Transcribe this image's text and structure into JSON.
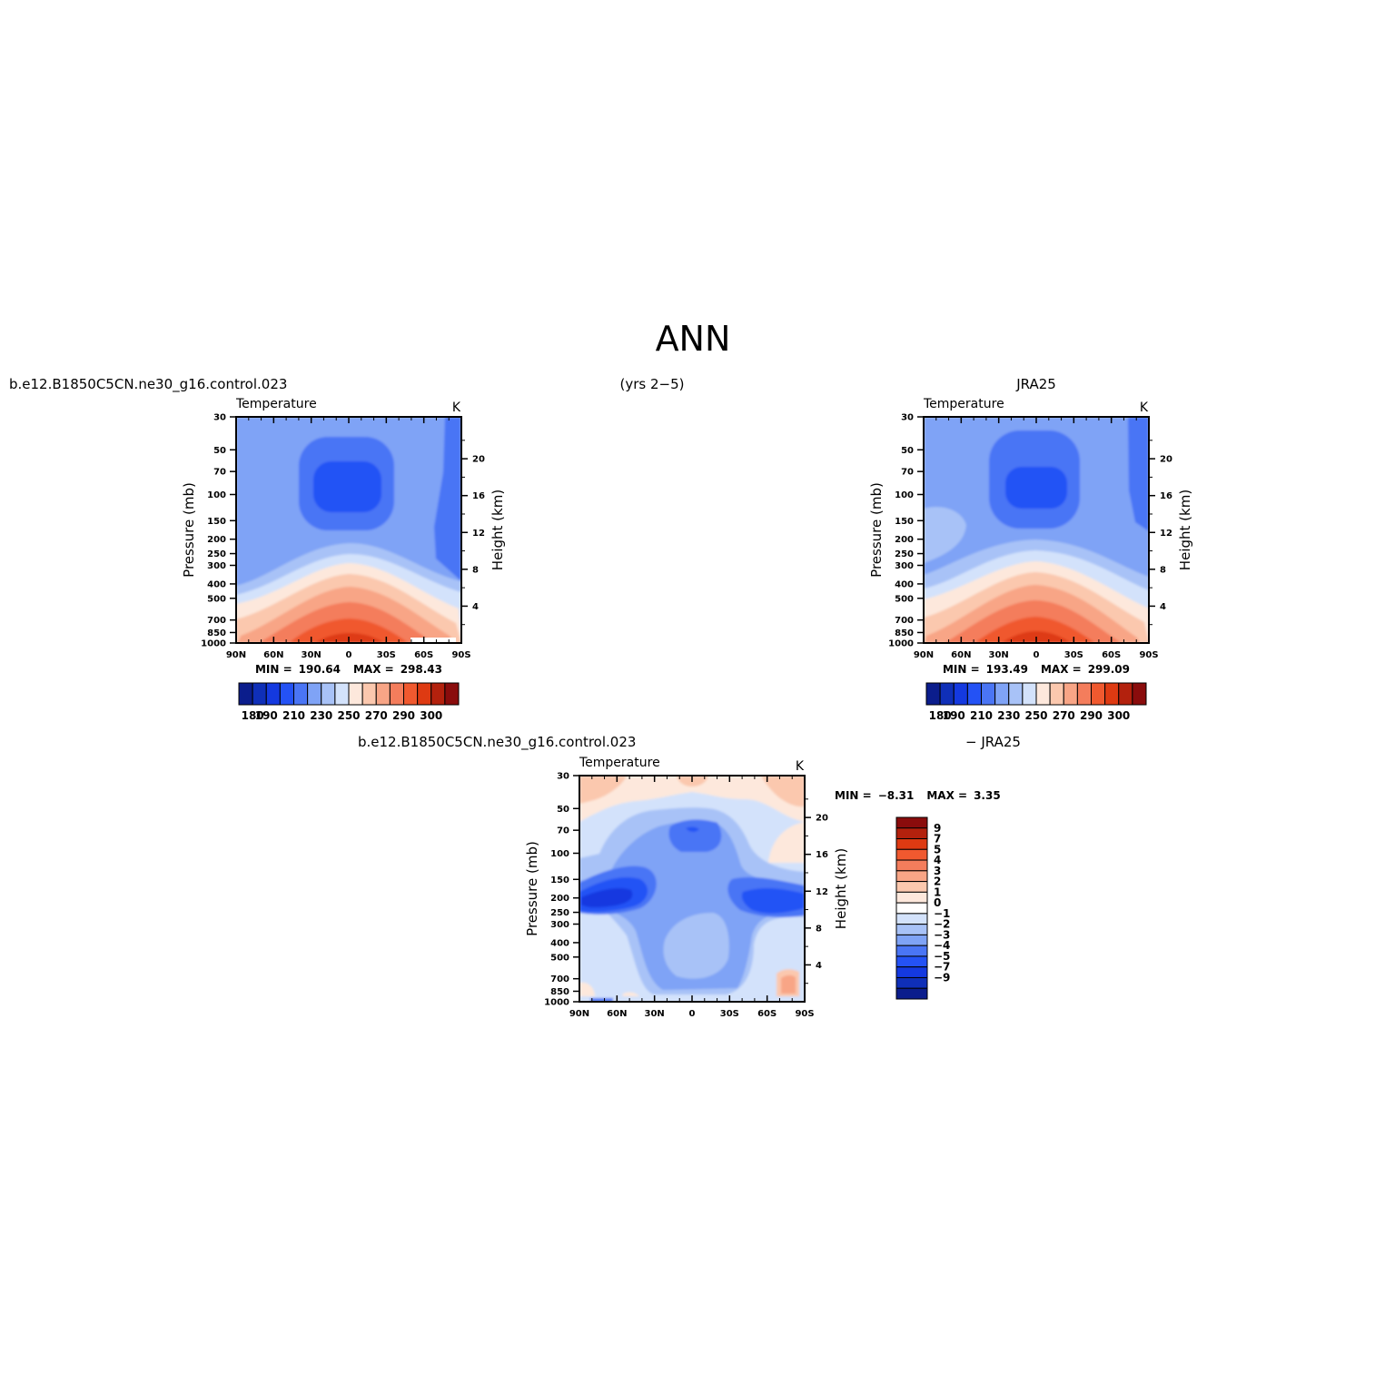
{
  "page_title": "ANN",
  "top_left_header": "b.e12.B1850C5CN.ne30_g16.control.023",
  "top_center_header": "(yrs 2−5)",
  "top_right_header": "JRA25",
  "bottom_header_left": "b.e12.B1850C5CN.ne30_g16.control.023",
  "bottom_header_right": "− JRA25",
  "colors": {
    "abs_palette": [
      "#0b1d8c",
      "#0f2fb8",
      "#1439e0",
      "#2452f5",
      "#4a75f5",
      "#7fa3f6",
      "#a8c2f7",
      "#d3e2fb",
      "#fde8dc",
      "#fbc8ae",
      "#f8a586",
      "#f47d5c",
      "#f0592f",
      "#de3a12",
      "#b3210d",
      "#8a0c0c"
    ],
    "diff_palette": [
      "#0b1d8c",
      "#0f2fb8",
      "#1439e0",
      "#2452f5",
      "#4a75f5",
      "#7fa3f6",
      "#a8c2f7",
      "#d3e2fb",
      "#ffffff",
      "#fde8dc",
      "#fbc8ae",
      "#f8a586",
      "#f47d5c",
      "#f0592f",
      "#de3a12",
      "#b3210d",
      "#8a0c0c"
    ]
  },
  "chart_data": [
    {
      "type": "heatmap",
      "panel": "model",
      "title": "Temperature",
      "units": "K",
      "ylabel": "Pressure (mb)",
      "ylabel_right": "Height (km)",
      "x_ticks": [
        "90N",
        "60N",
        "30N",
        "0",
        "30S",
        "60S",
        "90S"
      ],
      "y_ticks": [
        "30",
        "50",
        "70",
        "100",
        "150",
        "200",
        "250",
        "300",
        "400",
        "500",
        "700",
        "850",
        "1000"
      ],
      "y_right_ticks": [
        "20",
        "16",
        "12",
        "8",
        "4"
      ],
      "stats": {
        "min_label": "MIN =",
        "min": "190.64",
        "max_label": "MAX =",
        "max": "298.43"
      },
      "colorbar_labels": [
        "180",
        "190",
        "210",
        "230",
        "250",
        "270",
        "290",
        "300"
      ]
    },
    {
      "type": "heatmap",
      "panel": "obs",
      "title": "Temperature",
      "units": "K",
      "ylabel": "Pressure (mb)",
      "ylabel_right": "Height (km)",
      "x_ticks": [
        "90N",
        "60N",
        "30N",
        "0",
        "30S",
        "60S",
        "90S"
      ],
      "y_ticks": [
        "30",
        "50",
        "70",
        "100",
        "150",
        "200",
        "250",
        "300",
        "400",
        "500",
        "700",
        "850",
        "1000"
      ],
      "y_right_ticks": [
        "20",
        "16",
        "12",
        "8",
        "4"
      ],
      "stats": {
        "min_label": "MIN =",
        "min": "193.49",
        "max_label": "MAX =",
        "max": "299.09"
      },
      "colorbar_labels": [
        "180",
        "190",
        "210",
        "230",
        "250",
        "270",
        "290",
        "300"
      ]
    },
    {
      "type": "heatmap",
      "panel": "difference",
      "title": "Temperature",
      "units": "K",
      "ylabel": "Pressure (mb)",
      "ylabel_right": "Height (km)",
      "x_ticks": [
        "90N",
        "60N",
        "30N",
        "0",
        "30S",
        "60S",
        "90S"
      ],
      "y_ticks": [
        "30",
        "50",
        "70",
        "100",
        "150",
        "200",
        "250",
        "300",
        "400",
        "500",
        "700",
        "850",
        "1000"
      ],
      "y_right_ticks": [
        "20",
        "16",
        "12",
        "8",
        "4"
      ],
      "stats": {
        "min_label": "MIN =",
        "min": "−8.31",
        "max_label": "MAX =",
        "max": "3.35"
      },
      "colorbar_labels": [
        "9",
        "7",
        "5",
        "4",
        "3",
        "2",
        "1",
        "0",
        "−1",
        "−2",
        "−3",
        "−4",
        "−5",
        "−7",
        "−9"
      ]
    }
  ]
}
